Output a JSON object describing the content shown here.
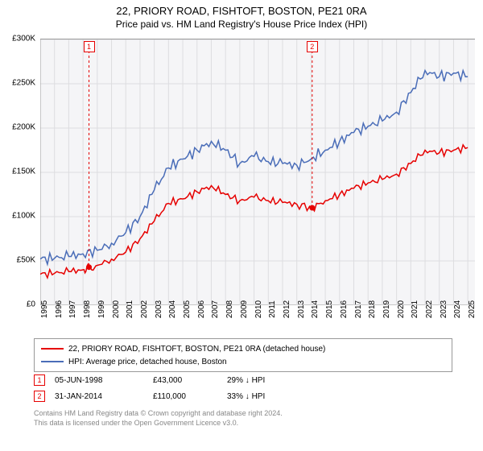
{
  "title_main": "22, PRIORY ROAD, FISHTOFT, BOSTON, PE21 0RA",
  "title_sub": "Price paid vs. HM Land Registry's House Price Index (HPI)",
  "chart": {
    "type": "line",
    "background_color": "#f5f5f7",
    "grid_color": "#dddde0",
    "axis_color": "#999999",
    "xlim": [
      1995,
      2025.5
    ],
    "ylim": [
      0,
      300000
    ],
    "y_ticks": [
      0,
      50000,
      100000,
      150000,
      200000,
      250000,
      300000
    ],
    "y_tick_labels": [
      "£0",
      "£50K",
      "£100K",
      "£150K",
      "£200K",
      "£250K",
      "£300K"
    ],
    "x_ticks": [
      1995,
      1996,
      1997,
      1998,
      1999,
      2000,
      2001,
      2002,
      2003,
      2004,
      2005,
      2006,
      2007,
      2008,
      2009,
      2010,
      2011,
      2012,
      2013,
      2014,
      2015,
      2016,
      2017,
      2018,
      2019,
      2020,
      2021,
      2022,
      2023,
      2024,
      2025
    ],
    "label_fontsize": 10,
    "series": [
      {
        "name": "property",
        "label": "22, PRIORY ROAD, FISHTOFT, BOSTON, PE21 0RA (detached house)",
        "color": "#e60000",
        "line_width": 1.5,
        "data": [
          [
            1995,
            35000
          ],
          [
            1996,
            36000
          ],
          [
            1997,
            38000
          ],
          [
            1998,
            40000
          ],
          [
            1998.42,
            43000
          ],
          [
            1999,
            45000
          ],
          [
            2000,
            52000
          ],
          [
            2001,
            60000
          ],
          [
            2002,
            75000
          ],
          [
            2003,
            95000
          ],
          [
            2004,
            115000
          ],
          [
            2005,
            120000
          ],
          [
            2006,
            128000
          ],
          [
            2007,
            135000
          ],
          [
            2008,
            125000
          ],
          [
            2009,
            118000
          ],
          [
            2010,
            122000
          ],
          [
            2011,
            118000
          ],
          [
            2012,
            116000
          ],
          [
            2013,
            114000
          ],
          [
            2014.08,
            110000
          ],
          [
            2015,
            118000
          ],
          [
            2016,
            125000
          ],
          [
            2017,
            132000
          ],
          [
            2018,
            138000
          ],
          [
            2019,
            142000
          ],
          [
            2020,
            148000
          ],
          [
            2021,
            160000
          ],
          [
            2022,
            175000
          ],
          [
            2023,
            172000
          ],
          [
            2024,
            175000
          ],
          [
            2025,
            178000
          ]
        ]
      },
      {
        "name": "hpi",
        "label": "HPI: Average price, detached house, Boston",
        "color": "#4a6db8",
        "line_width": 1.5,
        "data": [
          [
            1995,
            52000
          ],
          [
            1996,
            53000
          ],
          [
            1997,
            55000
          ],
          [
            1998,
            58000
          ],
          [
            1999,
            62000
          ],
          [
            2000,
            70000
          ],
          [
            2001,
            82000
          ],
          [
            2002,
            100000
          ],
          [
            2003,
            130000
          ],
          [
            2004,
            155000
          ],
          [
            2005,
            165000
          ],
          [
            2006,
            175000
          ],
          [
            2007,
            185000
          ],
          [
            2008,
            175000
          ],
          [
            2009,
            160000
          ],
          [
            2010,
            168000
          ],
          [
            2011,
            162000
          ],
          [
            2012,
            160000
          ],
          [
            2013,
            158000
          ],
          [
            2014,
            165000
          ],
          [
            2015,
            175000
          ],
          [
            2016,
            185000
          ],
          [
            2017,
            195000
          ],
          [
            2018,
            202000
          ],
          [
            2019,
            208000
          ],
          [
            2020,
            218000
          ],
          [
            2021,
            240000
          ],
          [
            2022,
            265000
          ],
          [
            2023,
            258000
          ],
          [
            2024,
            262000
          ],
          [
            2025,
            258000
          ]
        ]
      }
    ],
    "sale_markers": [
      {
        "n": "1",
        "x": 1998.42,
        "y": 43000,
        "color": "#e60000"
      },
      {
        "n": "2",
        "x": 2014.08,
        "y": 110000,
        "color": "#e60000"
      }
    ]
  },
  "legend": {
    "rows": [
      {
        "color": "#e60000",
        "label": "22, PRIORY ROAD, FISHTOFT, BOSTON, PE21 0RA (detached house)"
      },
      {
        "color": "#4a6db8",
        "label": "HPI: Average price, detached house, Boston"
      }
    ]
  },
  "sales": [
    {
      "n": "1",
      "color": "#e60000",
      "date": "05-JUN-1998",
      "price": "£43,000",
      "diff": "29% ↓ HPI"
    },
    {
      "n": "2",
      "color": "#e60000",
      "date": "31-JAN-2014",
      "price": "£110,000",
      "diff": "33% ↓ HPI"
    }
  ],
  "footer_line1": "Contains HM Land Registry data © Crown copyright and database right 2024.",
  "footer_line2": "This data is licensed under the Open Government Licence v3.0."
}
